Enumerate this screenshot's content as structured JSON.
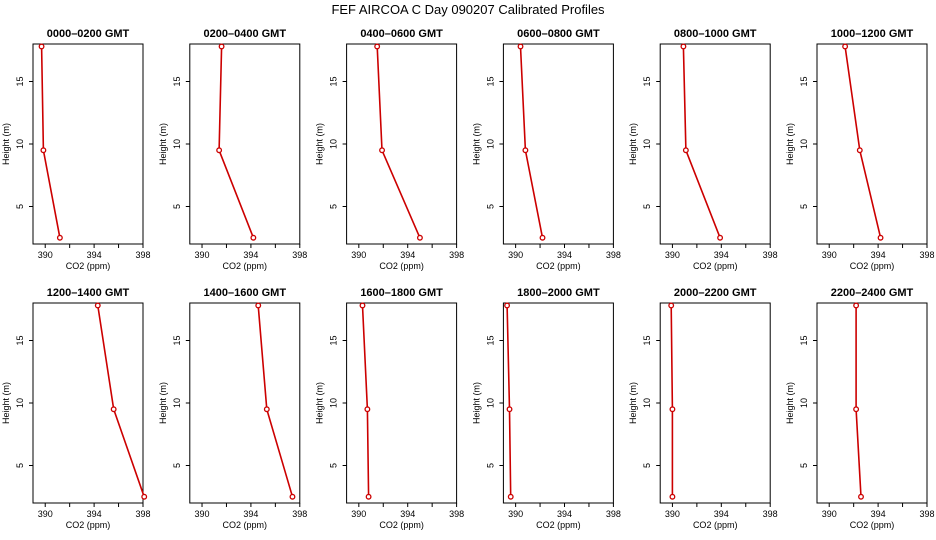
{
  "figure": {
    "title": "FEF AIRCOA C  Day 090207  Calibrated Profiles",
    "line_color": "#cc0000",
    "axis_color": "#000000"
  },
  "chart_data": [
    {
      "type": "line",
      "title": "0000–0200 GMT",
      "xlabel": "CO2 (ppm)",
      "ylabel": "Height (m)",
      "xlim": [
        389,
        398
      ],
      "ylim": [
        2,
        18
      ],
      "xticks": [
        390,
        394,
        398
      ],
      "yticks": [
        5,
        10,
        15
      ],
      "grid": false,
      "series": [
        {
          "x": [
            389.7,
            389.85,
            391.2
          ],
          "y": [
            17.8,
            9.5,
            2.5
          ]
        }
      ]
    },
    {
      "type": "line",
      "title": "0200–0400 GMT",
      "xlabel": "CO2 (ppm)",
      "ylabel": "Height (m)",
      "xlim": [
        389,
        398
      ],
      "ylim": [
        2,
        18
      ],
      "xticks": [
        390,
        394,
        398
      ],
      "yticks": [
        5,
        10,
        15
      ],
      "grid": false,
      "series": [
        {
          "x": [
            391.6,
            391.4,
            394.2
          ],
          "y": [
            17.8,
            9.5,
            2.5
          ]
        }
      ]
    },
    {
      "type": "line",
      "title": "0400–0600 GMT",
      "xlabel": "CO2 (ppm)",
      "ylabel": "Height (m)",
      "xlim": [
        389,
        398
      ],
      "ylim": [
        2,
        18
      ],
      "xticks": [
        390,
        394,
        398
      ],
      "yticks": [
        5,
        10,
        15
      ],
      "grid": false,
      "series": [
        {
          "x": [
            391.5,
            391.9,
            395.0
          ],
          "y": [
            17.8,
            9.5,
            2.5
          ]
        }
      ]
    },
    {
      "type": "line",
      "title": "0600–0800 GMT",
      "xlabel": "CO2 (ppm)",
      "ylabel": "Height (m)",
      "xlim": [
        389,
        398
      ],
      "ylim": [
        2,
        18
      ],
      "xticks": [
        390,
        394,
        398
      ],
      "yticks": [
        5,
        10,
        15
      ],
      "grid": false,
      "series": [
        {
          "x": [
            390.4,
            390.8,
            392.2
          ],
          "y": [
            17.8,
            9.5,
            2.5
          ]
        }
      ]
    },
    {
      "type": "line",
      "title": "0800–1000 GMT",
      "xlabel": "CO2 (ppm)",
      "ylabel": "Height (m)",
      "xlim": [
        389,
        398
      ],
      "ylim": [
        2,
        18
      ],
      "xticks": [
        390,
        394,
        398
      ],
      "yticks": [
        5,
        10,
        15
      ],
      "grid": false,
      "series": [
        {
          "x": [
            390.9,
            391.1,
            393.9
          ],
          "y": [
            17.8,
            9.5,
            2.5
          ]
        }
      ]
    },
    {
      "type": "line",
      "title": "1000–1200 GMT",
      "xlabel": "CO2 (ppm)",
      "ylabel": "Height (m)",
      "xlim": [
        389,
        398
      ],
      "ylim": [
        2,
        18
      ],
      "xticks": [
        390,
        394,
        398
      ],
      "yticks": [
        5,
        10,
        15
      ],
      "grid": false,
      "series": [
        {
          "x": [
            391.3,
            392.5,
            394.2
          ],
          "y": [
            17.8,
            9.5,
            2.5
          ]
        }
      ]
    },
    {
      "type": "line",
      "title": "1200–1400 GMT",
      "xlabel": "CO2 (ppm)",
      "ylabel": "Height (m)",
      "xlim": [
        389,
        398
      ],
      "ylim": [
        2,
        18
      ],
      "xticks": [
        390,
        394,
        398
      ],
      "yticks": [
        5,
        10,
        15
      ],
      "grid": false,
      "series": [
        {
          "x": [
            394.3,
            395.6,
            398.1
          ],
          "y": [
            17.8,
            9.5,
            2.5
          ]
        }
      ]
    },
    {
      "type": "line",
      "title": "1400–1600 GMT",
      "xlabel": "CO2 (ppm)",
      "ylabel": "Height (m)",
      "xlim": [
        389,
        398
      ],
      "ylim": [
        2,
        18
      ],
      "xticks": [
        390,
        394,
        398
      ],
      "yticks": [
        5,
        10,
        15
      ],
      "grid": false,
      "series": [
        {
          "x": [
            394.6,
            395.3,
            397.4
          ],
          "y": [
            17.8,
            9.5,
            2.5
          ]
        }
      ]
    },
    {
      "type": "line",
      "title": "1600–1800 GMT",
      "xlabel": "CO2 (ppm)",
      "ylabel": "Height (m)",
      "xlim": [
        389,
        398
      ],
      "ylim": [
        2,
        18
      ],
      "xticks": [
        390,
        394,
        398
      ],
      "yticks": [
        5,
        10,
        15
      ],
      "grid": false,
      "series": [
        {
          "x": [
            390.3,
            390.7,
            390.8
          ],
          "y": [
            17.8,
            9.5,
            2.5
          ]
        }
      ]
    },
    {
      "type": "line",
      "title": "1800–2000 GMT",
      "xlabel": "CO2 (ppm)",
      "ylabel": "Height (m)",
      "xlim": [
        389,
        398
      ],
      "ylim": [
        2,
        18
      ],
      "xticks": [
        390,
        394,
        398
      ],
      "yticks": [
        5,
        10,
        15
      ],
      "grid": false,
      "series": [
        {
          "x": [
            389.3,
            389.5,
            389.6
          ],
          "y": [
            17.8,
            9.5,
            2.5
          ]
        }
      ]
    },
    {
      "type": "line",
      "title": "2000–2200 GMT",
      "xlabel": "CO2 (ppm)",
      "ylabel": "Height (m)",
      "xlim": [
        389,
        398
      ],
      "ylim": [
        2,
        18
      ],
      "xticks": [
        390,
        394,
        398
      ],
      "yticks": [
        5,
        10,
        15
      ],
      "grid": false,
      "series": [
        {
          "x": [
            389.9,
            390.0,
            390.0
          ],
          "y": [
            17.8,
            9.5,
            2.5
          ]
        }
      ]
    },
    {
      "type": "line",
      "title": "2200–2400 GMT",
      "xlabel": "CO2 (ppm)",
      "ylabel": "Height (m)",
      "xlim": [
        389,
        398
      ],
      "ylim": [
        2,
        18
      ],
      "xticks": [
        390,
        394,
        398
      ],
      "yticks": [
        5,
        10,
        15
      ],
      "grid": false,
      "series": [
        {
          "x": [
            392.2,
            392.2,
            392.6
          ],
          "y": [
            17.8,
            9.5,
            2.5
          ]
        }
      ]
    }
  ]
}
